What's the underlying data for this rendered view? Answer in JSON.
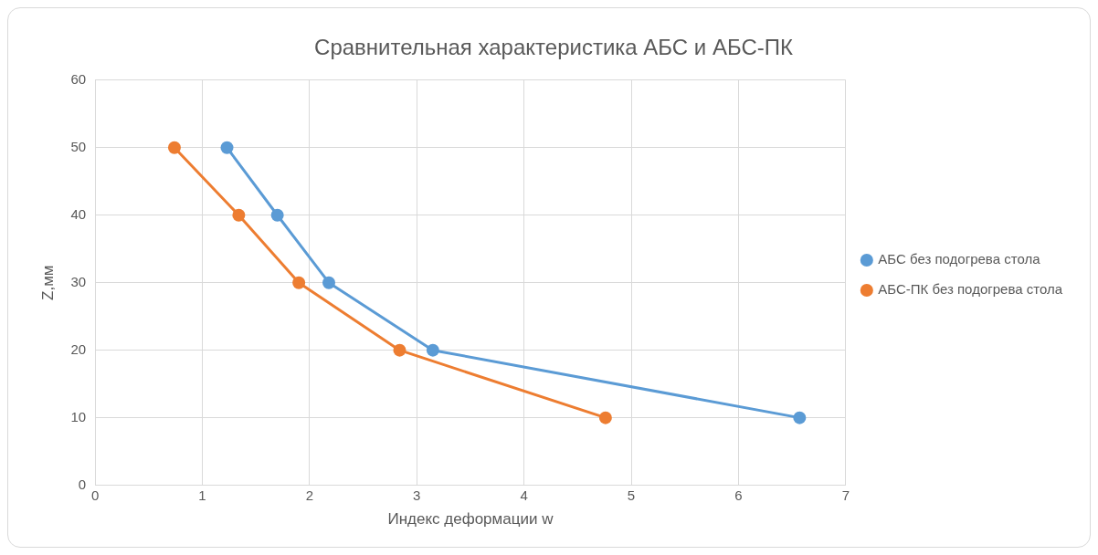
{
  "chart_data": {
    "type": "line",
    "title": "Сравнительная характеристика АБС и АБС-ПК",
    "xlabel": "Индекс деформации w",
    "ylabel": "Z,мм",
    "series": [
      {
        "name": "АБС без подогрева стола",
        "color": "#5b9bd5",
        "x": [
          1.23,
          1.7,
          2.18,
          3.15,
          6.57
        ],
        "values": [
          50,
          40,
          30,
          20,
          10
        ]
      },
      {
        "name": "АБС-ПК без подогрева стола",
        "color": "#ed7d31",
        "x": [
          0.74,
          1.34,
          1.9,
          2.84,
          4.76
        ],
        "values": [
          50,
          40,
          30,
          20,
          10
        ]
      }
    ],
    "xlim": [
      0,
      7
    ],
    "xticks": [
      0,
      1,
      2,
      3,
      4,
      5,
      6,
      7
    ],
    "ylim": [
      0,
      60
    ],
    "yticks": [
      0,
      10,
      20,
      30,
      40,
      50,
      60
    ],
    "grid": true,
    "legend": "right",
    "marker": "circle",
    "line_style": "solid"
  }
}
